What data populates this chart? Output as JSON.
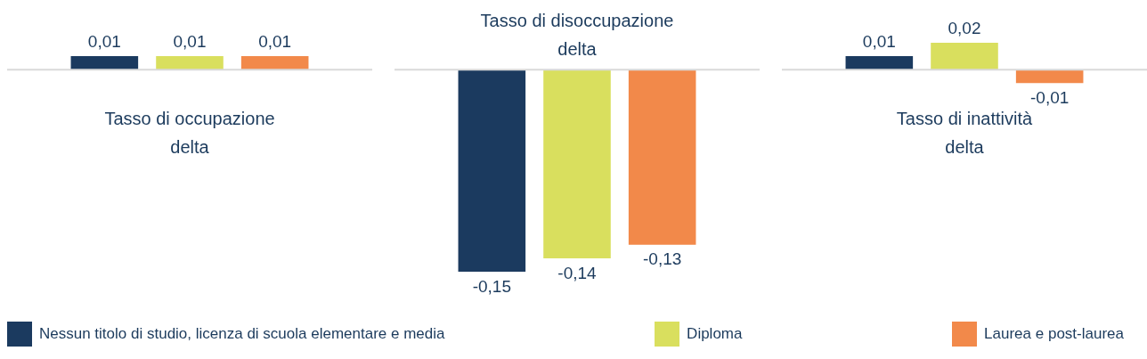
{
  "chart_data": [
    {
      "type": "bar",
      "title": "Tasso di occupazione delta",
      "categories": [
        null
      ],
      "tick_labels": false,
      "grid": false,
      "legend": "bottom",
      "series": [
        {
          "name": "Nessun titolo di studio, licenza di scuola elementare e media",
          "color": "#1b3a5f",
          "values": [
            0.01
          ],
          "value_labels": [
            "0,01"
          ]
        },
        {
          "name": "Diploma",
          "color": "#d9df5e",
          "values": [
            0.01
          ],
          "value_labels": [
            "0,01"
          ]
        },
        {
          "name": "Laurea e post-laurea",
          "color": "#f2894a",
          "values": [
            0.01
          ],
          "value_labels": [
            "0,01"
          ]
        }
      ]
    },
    {
      "type": "bar",
      "title": "Tasso di disoccupazione delta",
      "categories": [
        null
      ],
      "tick_labels": false,
      "grid": false,
      "series": [
        {
          "color": "#1b3a5f",
          "values": [
            -0.15
          ],
          "value_labels": [
            "-0,15"
          ]
        },
        {
          "color": "#d9df5e",
          "values": [
            -0.14
          ],
          "value_labels": [
            "-0,14"
          ]
        },
        {
          "color": "#f2894a",
          "values": [
            -0.13
          ],
          "value_labels": [
            "-0,13"
          ]
        }
      ]
    },
    {
      "type": "bar",
      "title": "Tasso di inattività delta",
      "categories": [
        null
      ],
      "tick_labels": false,
      "grid": false,
      "series": [
        {
          "color": "#1b3a5f",
          "values": [
            0.01
          ],
          "value_labels": [
            "0,01"
          ]
        },
        {
          "color": "#d9df5e",
          "values": [
            0.02
          ],
          "value_labels": [
            "0,02"
          ]
        },
        {
          "color": "#f2894a",
          "values": [
            -0.01
          ],
          "value_labels": [
            "-0,01"
          ]
        }
      ]
    }
  ]
}
